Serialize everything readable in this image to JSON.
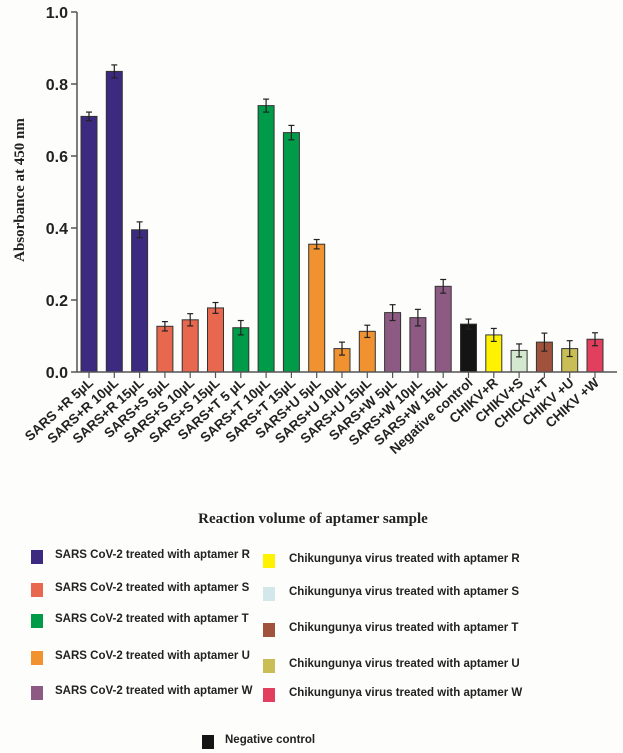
{
  "chart_data": {
    "type": "bar",
    "title": "",
    "xlabel": "Reaction volume of aptamer sample",
    "ylabel": "Absorbance at 450 nm",
    "ylim": [
      0,
      1.0
    ],
    "yticks": [
      "0.0",
      "0.2",
      "0.4",
      "0.6",
      "0.8",
      "1.0"
    ],
    "grid": false,
    "categories": [
      "SARS +R 5µL",
      "SARS+R 10µL",
      "SARS+R 15µL",
      "SARS+S 5µL",
      "SARS+S 10µL",
      "SARS+S 15µL",
      "SARS+T 5 µL",
      "SARS+T 10µL",
      "SARS+T 15µL",
      "SARS+U 5µL",
      "SARS+U 10µL",
      "SARS+U 15µL",
      "SARS+W 5µL",
      "SARS+W 10µL",
      "SARS+W 15µL",
      "Negative control",
      "CHIKV+R",
      "CHIKV+S",
      "CHICKV+T",
      "CHIKV +U",
      "CHIKV +W"
    ],
    "values": [
      0.71,
      0.835,
      0.395,
      0.127,
      0.145,
      0.178,
      0.123,
      0.74,
      0.665,
      0.355,
      0.065,
      0.113,
      0.165,
      0.151,
      0.238,
      0.133,
      0.103,
      0.06,
      0.083,
      0.065,
      0.091
    ],
    "errors": [
      0.012,
      0.018,
      0.022,
      0.013,
      0.017,
      0.015,
      0.02,
      0.018,
      0.02,
      0.013,
      0.018,
      0.017,
      0.022,
      0.023,
      0.019,
      0.014,
      0.018,
      0.018,
      0.025,
      0.022,
      0.018
    ],
    "bar_colors": [
      "#3b2a7f",
      "#3b2a7f",
      "#3b2a7f",
      "#e8674f",
      "#e8674f",
      "#e8674f",
      "#009b48",
      "#009b48",
      "#009b48",
      "#f0922f",
      "#f0922f",
      "#f0922f",
      "#8c5a83",
      "#8c5a83",
      "#8c5a83",
      "#141414",
      "#fff200",
      "#d3e8cf",
      "#a0523d",
      "#c9bd55",
      "#e23f5f"
    ],
    "legend": {
      "placement": "bottom",
      "left": [
        {
          "label": "SARS CoV-2 treated with aptamer R",
          "color": "#3b2a7f"
        },
        {
          "label": "SARS CoV-2 treated with aptamer S",
          "color": "#e8674f"
        },
        {
          "label": "SARS CoV-2 treated with aptamer T",
          "color": "#009b48"
        },
        {
          "label": "SARS CoV-2 treated with aptamer U",
          "color": "#f0922f"
        },
        {
          "label": "SARS CoV-2 treated with aptamer W",
          "color": "#8c5a83"
        }
      ],
      "right": [
        {
          "label": "Chikungunya virus treated with aptamer R",
          "color": "#fff200"
        },
        {
          "label": "Chikungunya virus treated with aptamer S",
          "color": "#d3e8ea"
        },
        {
          "label": "Chikungunya virus treated with aptamer T",
          "color": "#a0523d"
        },
        {
          "label": "Chikungunya virus treated with aptamer U",
          "color": "#c9bd55"
        },
        {
          "label": "Chikungunya virus treated with aptamer W",
          "color": "#e23f5f"
        }
      ],
      "bottom": {
        "label": "Negative control",
        "color": "#141414"
      }
    }
  }
}
